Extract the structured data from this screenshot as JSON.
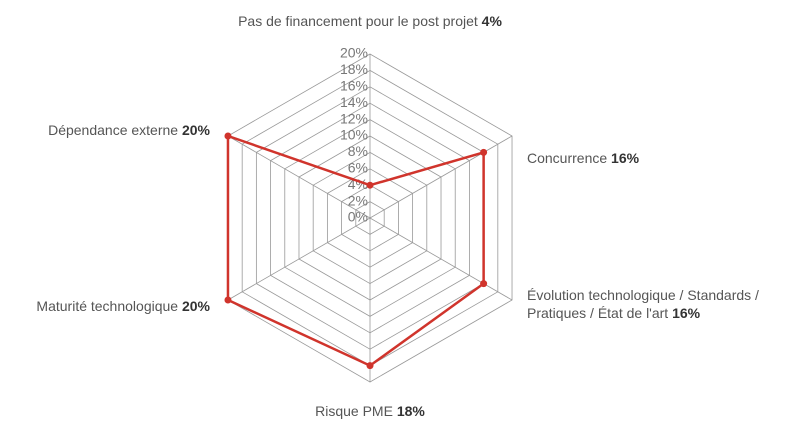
{
  "chart_data": {
    "type": "radar",
    "categories": [
      "Pas de financement pour le post projet",
      "Concurrence",
      "Évolution technologique / Standards / Pratiques / État de l'art",
      "Risque PME",
      "Maturité technologique",
      "Dépendance externe"
    ],
    "values": [
      4,
      16,
      16,
      18,
      20,
      20
    ],
    "value_labels": [
      "4%",
      "16%",
      "16%",
      "18%",
      "20%",
      "20%"
    ],
    "color": "#d0342c",
    "rlim": [
      0,
      20
    ],
    "rticks": [
      {
        "value": 0,
        "label": "0%"
      },
      {
        "value": 2,
        "label": "2%"
      },
      {
        "value": 4,
        "label": "4%"
      },
      {
        "value": 6,
        "label": "6%"
      },
      {
        "value": 8,
        "label": "8%"
      },
      {
        "value": 10,
        "label": "10%"
      },
      {
        "value": 12,
        "label": "12%"
      },
      {
        "value": 14,
        "label": "14%"
      },
      {
        "value": 16,
        "label": "16%"
      },
      {
        "value": 18,
        "label": "18%"
      },
      {
        "value": 20,
        "label": "20%"
      }
    ],
    "grid": true
  }
}
